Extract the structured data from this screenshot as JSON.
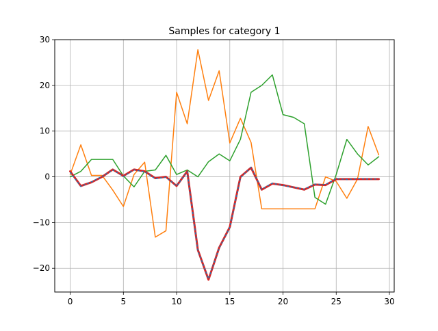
{
  "chart_data": {
    "type": "line",
    "title": "Samples for category 1",
    "xlabel": "",
    "ylabel": "",
    "xlim": [
      -1.45,
      30.45
    ],
    "ylim": [
      -25.2,
      30.0
    ],
    "grid": true,
    "x_ticks": [
      0,
      5,
      10,
      15,
      20,
      25,
      30
    ],
    "x_tick_labels": [
      "0",
      "5",
      "10",
      "15",
      "20",
      "25",
      "30"
    ],
    "y_ticks": [
      -20,
      -10,
      0,
      10,
      20,
      30
    ],
    "y_tick_labels": [
      "−20",
      "−10",
      "0",
      "10",
      "20",
      "30"
    ],
    "x": [
      0,
      1,
      2,
      3,
      4,
      5,
      6,
      7,
      8,
      9,
      10,
      11,
      12,
      13,
      14,
      15,
      16,
      17,
      18,
      19,
      20,
      21,
      22,
      23,
      24,
      25,
      26,
      27,
      28,
      29
    ],
    "series": [
      {
        "color": "#ff7f0e",
        "style": "solid",
        "width": 1.5,
        "values": [
          0.5,
          7.0,
          0.3,
          0.3,
          -2.9,
          -6.5,
          0.5,
          3.2,
          -13.2,
          -11.8,
          18.5,
          11.6,
          27.8,
          16.7,
          23.2,
          7.4,
          12.8,
          7.5,
          -7.0,
          -7.0,
          -7.0,
          -7.0,
          -7.0,
          -7.0,
          0.0,
          -1.0,
          -4.7,
          -0.5,
          11.0,
          4.8
        ]
      },
      {
        "color": "#2ca02c",
        "style": "solid",
        "width": 1.5,
        "values": [
          0.0,
          1.2,
          3.8,
          3.8,
          3.8,
          0.2,
          -2.2,
          1.2,
          1.5,
          4.7,
          0.5,
          1.5,
          0.0,
          3.3,
          5.0,
          3.5,
          8.2,
          18.5,
          20.0,
          22.3,
          13.6,
          13.0,
          11.6,
          -4.5,
          -6.0,
          0.5,
          8.2,
          5.0,
          2.6,
          4.4
        ]
      },
      {
        "color": "#d62728",
        "style": "solid",
        "width": 3,
        "values": [
          1.2,
          -2.0,
          -1.2,
          0.0,
          1.6,
          0.2,
          1.6,
          1.2,
          -0.3,
          0.0,
          -2.0,
          1.2,
          -16.0,
          -22.5,
          -15.5,
          -11.0,
          0.0,
          2.0,
          -2.8,
          -1.5,
          -1.8,
          -2.3,
          -2.8,
          -1.7,
          -1.8,
          -0.5,
          -0.5,
          -0.5,
          -0.5,
          -0.5
        ]
      },
      {
        "color": "#1f77b4",
        "style": "dashed",
        "width": 1.5,
        "values": [
          1.0,
          -2.1,
          -1.1,
          0.1,
          1.5,
          0.1,
          1.5,
          1.1,
          -0.4,
          -0.1,
          -2.0,
          1.1,
          -16.2,
          -22.3,
          -15.6,
          -11.1,
          -0.2,
          2.1,
          -2.7,
          -1.4,
          -1.9,
          -2.3,
          -2.7,
          -1.6,
          -1.7,
          -0.4,
          -0.6,
          -0.4,
          -0.5,
          -0.5
        ]
      }
    ]
  }
}
